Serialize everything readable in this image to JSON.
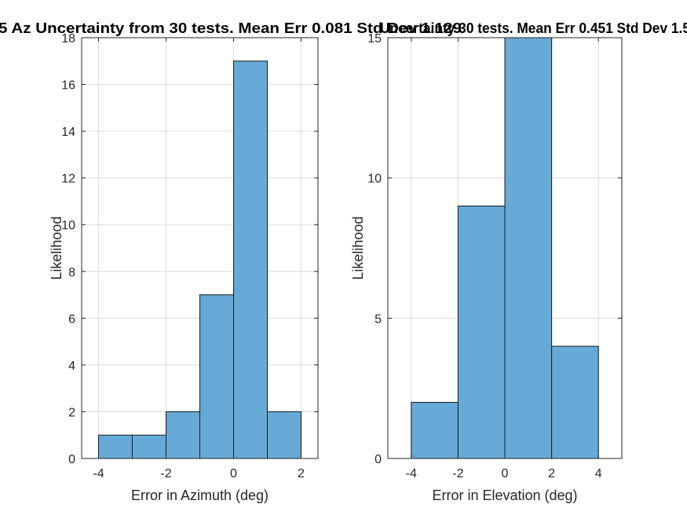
{
  "chart_data": [
    {
      "type": "bar",
      "title": "Az Uncertainty from 30 tests. Mean Err 0.081 Std Dev 1.129",
      "title_visible": "5 Az Uncertainty from 30 tests. Mean Err 0.081 Std Dev 1.129",
      "xlabel": "Error in Azimuth (deg)",
      "ylabel": "Likelihood",
      "bin_edges": [
        -4,
        -3,
        -2,
        -1,
        0,
        1,
        2
      ],
      "values": [
        1,
        1,
        2,
        7,
        17,
        2
      ],
      "xlim": [
        -4.5,
        2.5
      ],
      "ylim": [
        0,
        18
      ],
      "xticks": [
        -4,
        -2,
        0,
        2
      ],
      "xtick_labels": [
        "-4",
        "-2",
        "0",
        "2"
      ],
      "yticks": [
        0,
        2,
        4,
        6,
        8,
        10,
        12,
        14,
        16,
        18
      ],
      "ytick_labels": [
        "0",
        "2",
        "4",
        "6",
        "8",
        "10",
        "12",
        "14",
        "16",
        "18"
      ],
      "grid": true,
      "bar_color": "#66aad7"
    },
    {
      "type": "bar",
      "title": "Uncertainty 30 tests. Mean Err 0.451 Std Dev 1.5",
      "title_visible": "Uncertainty 30 tests. Mean Err 0.451 Std Dev 1.5",
      "xlabel": "Error in Elevation (deg)",
      "ylabel": "Likelihood",
      "bin_edges": [
        -4,
        -2,
        0,
        2,
        4
      ],
      "values": [
        2,
        9,
        15,
        4
      ],
      "xlim": [
        -5,
        5
      ],
      "ylim": [
        0,
        15
      ],
      "xticks": [
        -4,
        -2,
        0,
        2,
        4
      ],
      "xtick_labels": [
        "-4",
        "-2",
        "0",
        "2",
        "4"
      ],
      "yticks": [
        0,
        5,
        10,
        15
      ],
      "ytick_labels": [
        "0",
        "5",
        "10",
        "15"
      ],
      "grid": true,
      "bar_color": "#66aad7"
    }
  ]
}
